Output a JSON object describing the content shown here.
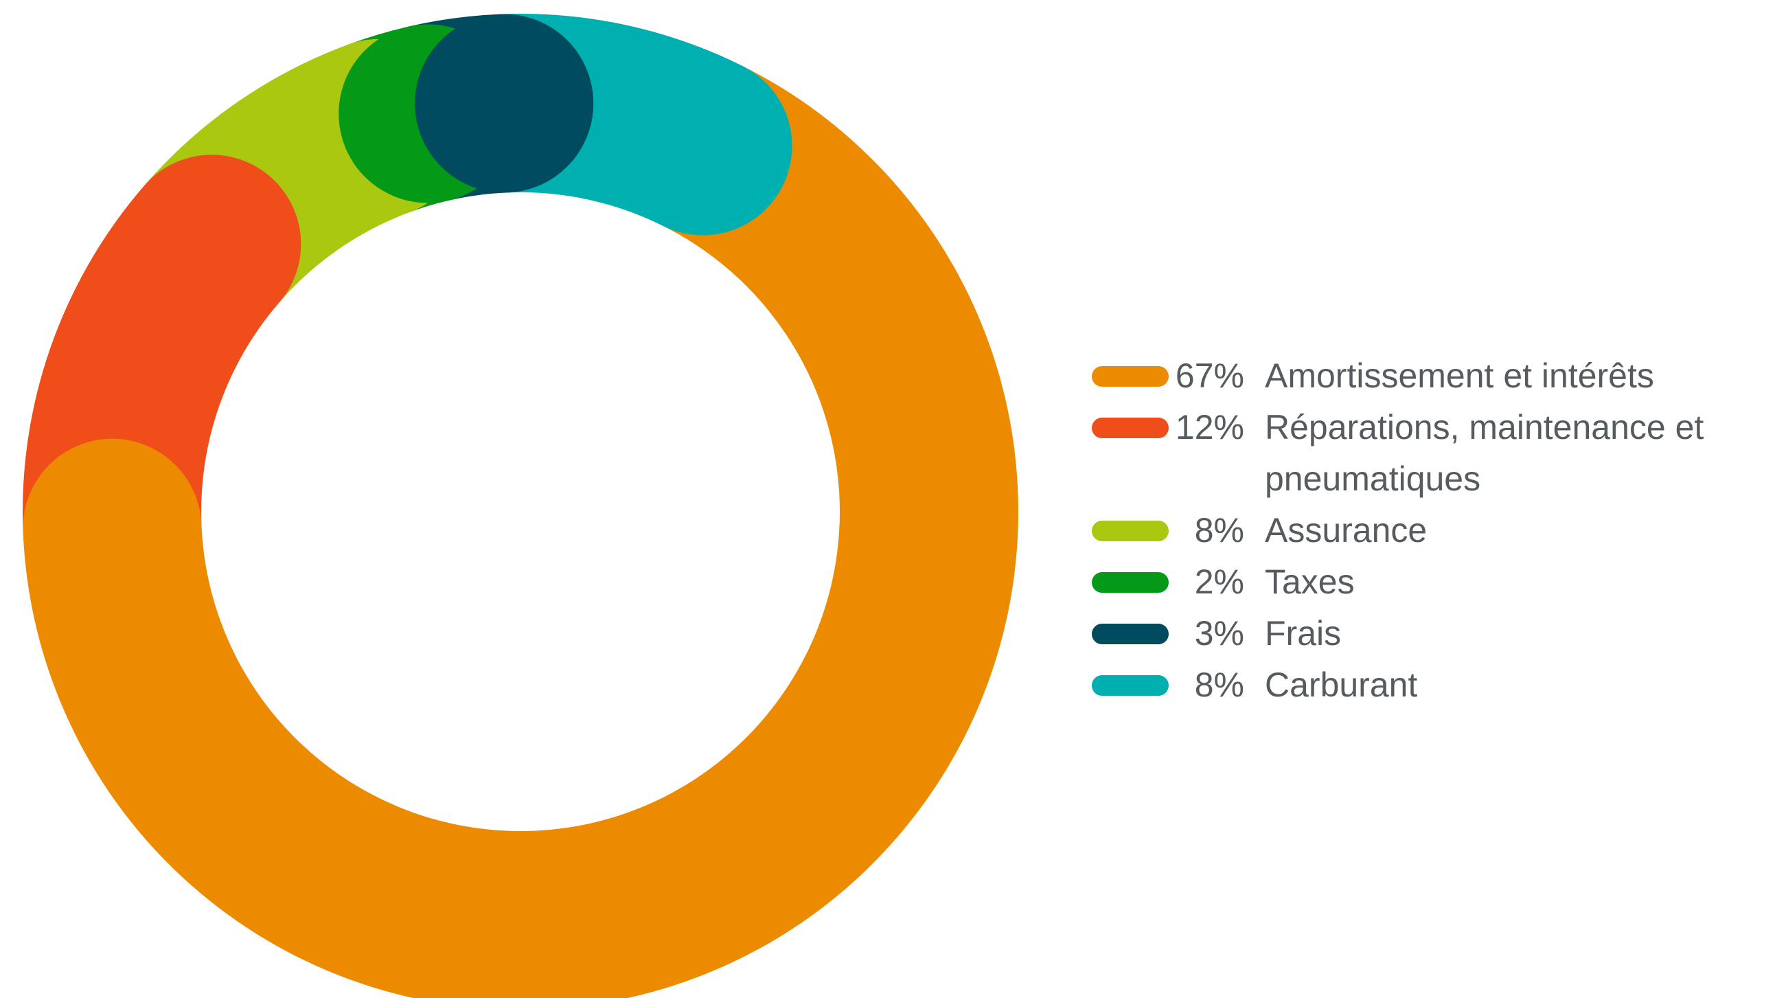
{
  "chart_data": {
    "type": "pie",
    "variant": "donut",
    "title": "",
    "legend_position": "right",
    "slices": [
      {
        "label": "Amortissement et intérêts",
        "value": 67,
        "value_label": "67%",
        "color": "#ed8b00"
      },
      {
        "label": "Réparations, maintenance et pneumatiques",
        "value": 12,
        "value_label": "12%",
        "color": "#ef4e1a"
      },
      {
        "label": "Assurance",
        "value": 8,
        "value_label": "8%",
        "color": "#a9c80f"
      },
      {
        "label": "Taxes",
        "value": 2,
        "value_label": "2%",
        "color": "#059918"
      },
      {
        "label": "Frais",
        "value": 3,
        "value_label": "3%",
        "color": "#004b5e"
      },
      {
        "label": "Carburant",
        "value": 8,
        "value_label": "8%",
        "color": "#00b0b0"
      }
    ]
  }
}
